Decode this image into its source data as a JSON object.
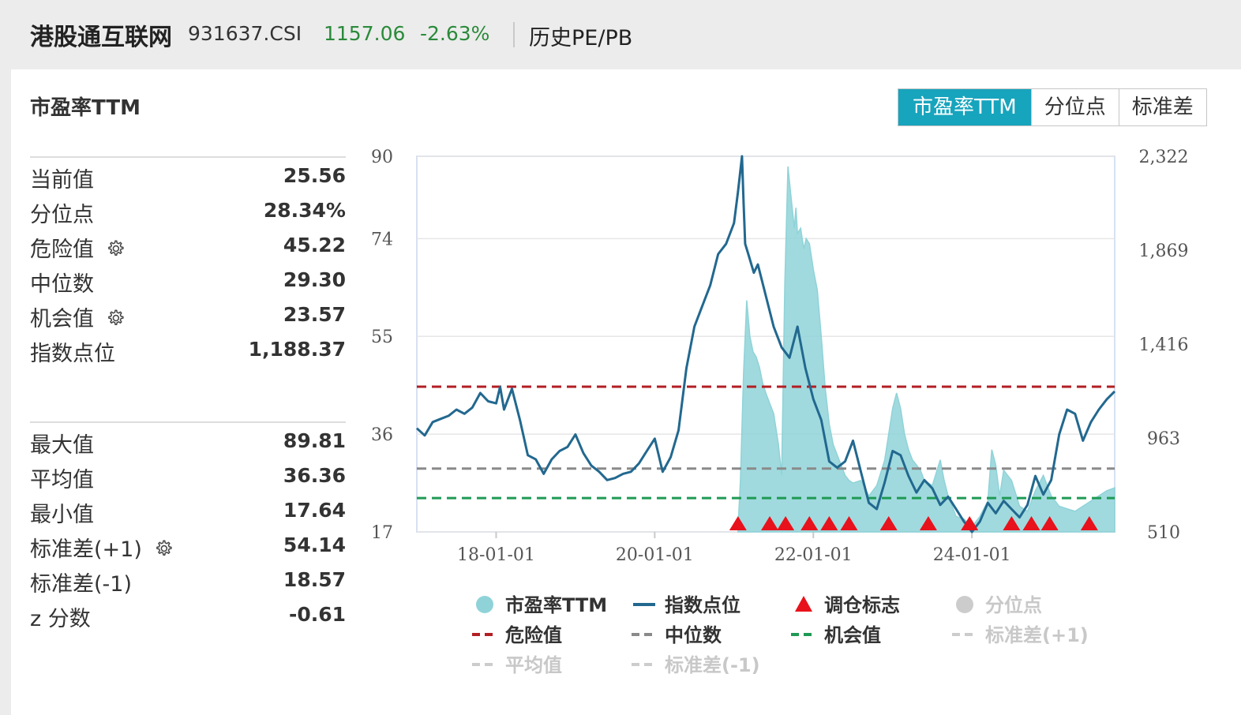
{
  "header": {
    "index_name": "港股通互联网",
    "code": "931637.CSI",
    "price": "1157.06",
    "change_pct": "-2.63%",
    "history_link": "历史PE/PB"
  },
  "panel": {
    "title": "市盈率TTM",
    "tabs": [
      {
        "label": "市盈率TTM",
        "active": true
      },
      {
        "label": "分位点",
        "active": false
      },
      {
        "label": "标准差",
        "active": false
      }
    ]
  },
  "stats_top": [
    {
      "label": "当前值",
      "value": "25.56",
      "gear": false
    },
    {
      "label": "分位点",
      "value": "28.34%",
      "gear": false
    },
    {
      "label": "危险值",
      "value": "45.22",
      "gear": true
    },
    {
      "label": "中位数",
      "value": "29.30",
      "gear": false
    },
    {
      "label": "机会值",
      "value": "23.57",
      "gear": true
    },
    {
      "label": "指数点位",
      "value": "1,188.37",
      "gear": false
    }
  ],
  "stats_bottom": [
    {
      "label": "最大值",
      "value": "89.81",
      "gear": false
    },
    {
      "label": "平均值",
      "value": "36.36",
      "gear": false
    },
    {
      "label": "最小值",
      "value": "17.64",
      "gear": false
    },
    {
      "label": "标准差(+1)",
      "value": "54.14",
      "gear": true
    },
    {
      "label": "标准差(-1)",
      "value": "18.57",
      "gear": false
    },
    {
      "label": "z 分数",
      "value": "-0.61",
      "gear": false
    }
  ],
  "colors": {
    "pe_fill": "#8fd3d8",
    "index_line": "#22688f",
    "danger": "#b21f24",
    "median": "#8a8a8a",
    "opportunity": "#1f9a55",
    "marker": "#e8121c",
    "accent": "#17a4bd",
    "inactive": "#cccccc"
  },
  "chart_data": {
    "type": "area",
    "title": "",
    "left_axis": {
      "ticks": [
        "90",
        "74",
        "55",
        "36",
        "17"
      ],
      "tick_values": [
        90,
        74,
        55,
        36,
        17
      ],
      "ylim": [
        17,
        90
      ]
    },
    "right_axis": {
      "ticks": [
        "2,322",
        "1,869",
        "1,416",
        "963",
        "510"
      ],
      "tick_values": [
        2322,
        1869,
        1416,
        963,
        510
      ],
      "ylim": [
        510,
        2322
      ]
    },
    "x_axis": {
      "ticks": [
        "18-01-01",
        "20-01-01",
        "22-01-01",
        "24-01-01"
      ],
      "tick_times": [
        2018.0,
        2020.0,
        2022.0,
        2024.0
      ],
      "xlim": [
        2017.0,
        2025.8
      ]
    },
    "reference_lines": [
      {
        "name": "危险值",
        "value": 45.22
      },
      {
        "name": "中位数",
        "value": 29.3
      },
      {
        "name": "机会值",
        "value": 23.57
      }
    ],
    "series": [
      {
        "name": "市盈率TTM",
        "axis": "left",
        "x": [
          2021.05,
          2021.08,
          2021.12,
          2021.16,
          2021.2,
          2021.24,
          2021.28,
          2021.32,
          2021.36,
          2021.4,
          2021.45,
          2021.5,
          2021.56,
          2021.6,
          2021.64,
          2021.68,
          2021.72,
          2021.76,
          2021.78,
          2021.8,
          2021.84,
          2021.88,
          2021.91,
          2021.95,
          2022.0,
          2022.05,
          2022.1,
          2022.15,
          2022.2,
          2022.25,
          2022.3,
          2022.35,
          2022.4,
          2022.45,
          2022.5,
          2022.6,
          2022.7,
          2022.8,
          2022.9,
          2023.0,
          2023.05,
          2023.1,
          2023.15,
          2023.2,
          2023.25,
          2023.3,
          2023.35,
          2023.4,
          2023.5,
          2023.6,
          2023.65,
          2023.7,
          2023.8,
          2023.9,
          2024.0,
          2024.1,
          2024.2,
          2024.25,
          2024.3,
          2024.35,
          2024.4,
          2024.5,
          2024.6,
          2024.7,
          2024.8,
          2024.9,
          2025.0,
          2025.1,
          2025.2,
          2025.3,
          2025.4,
          2025.5,
          2025.6,
          2025.7,
          2025.8
        ],
        "values": [
          17.6,
          27.0,
          48.0,
          62.0,
          55.0,
          52.0,
          51.0,
          49.0,
          46.0,
          44.0,
          42.0,
          40.0,
          34.0,
          28.0,
          65.0,
          88.0,
          82.0,
          76.0,
          80.0,
          75.0,
          76.0,
          72.0,
          74.0,
          73.0,
          68.0,
          64.0,
          55.0,
          45.0,
          38.0,
          34.0,
          32.0,
          30.0,
          28.0,
          27.0,
          26.5,
          27.0,
          24.0,
          26.0,
          31.0,
          41.0,
          44.0,
          41.0,
          36.0,
          33.0,
          31.0,
          30.0,
          29.0,
          27.0,
          26.0,
          31.0,
          27.0,
          24.0,
          20.0,
          19.5,
          18.0,
          20.0,
          23.0,
          33.0,
          30.0,
          24.0,
          29.0,
          27.0,
          22.0,
          21.0,
          25.0,
          28.0,
          24.0,
          22.0,
          21.5,
          21.0,
          22.0,
          23.0,
          24.0,
          25.0,
          25.56
        ]
      },
      {
        "name": "指数点位",
        "axis": "right",
        "x": [
          2017.0,
          2017.1,
          2017.2,
          2017.3,
          2017.4,
          2017.5,
          2017.6,
          2017.7,
          2017.8,
          2017.9,
          2018.0,
          2018.05,
          2018.1,
          2018.2,
          2018.3,
          2018.4,
          2018.5,
          2018.6,
          2018.7,
          2018.8,
          2018.9,
          2019.0,
          2019.1,
          2019.2,
          2019.3,
          2019.4,
          2019.5,
          2019.6,
          2019.7,
          2019.8,
          2019.9,
          2020.0,
          2020.1,
          2020.2,
          2020.3,
          2020.4,
          2020.5,
          2020.6,
          2020.7,
          2020.8,
          2020.9,
          2021.0,
          2021.05,
          2021.1,
          2021.12,
          2021.14,
          2021.18,
          2021.25,
          2021.3,
          2021.4,
          2021.5,
          2021.6,
          2021.7,
          2021.8,
          2021.9,
          2022.0,
          2022.1,
          2022.2,
          2022.3,
          2022.4,
          2022.5,
          2022.6,
          2022.7,
          2022.8,
          2022.9,
          2023.0,
          2023.1,
          2023.2,
          2023.3,
          2023.4,
          2023.5,
          2023.6,
          2023.7,
          2023.8,
          2023.9,
          2024.0,
          2024.1,
          2024.2,
          2024.3,
          2024.4,
          2024.5,
          2024.6,
          2024.7,
          2024.8,
          2024.9,
          2025.0,
          2025.1,
          2025.2,
          2025.3,
          2025.4,
          2025.5,
          2025.6,
          2025.7,
          2025.8
        ],
        "values": [
          1010,
          975,
          1040,
          1055,
          1070,
          1100,
          1080,
          1110,
          1180,
          1140,
          1130,
          1210,
          1100,
          1200,
          1050,
          880,
          860,
          790,
          860,
          900,
          920,
          980,
          890,
          830,
          800,
          760,
          770,
          790,
          800,
          840,
          900,
          960,
          800,
          870,
          1000,
          1300,
          1500,
          1600,
          1700,
          1850,
          1900,
          2000,
          2150,
          2322,
          2100,
          1900,
          1850,
          1760,
          1800,
          1650,
          1500,
          1400,
          1350,
          1500,
          1300,
          1150,
          1050,
          850,
          820,
          850,
          950,
          800,
          650,
          620,
          750,
          900,
          880,
          780,
          700,
          760,
          720,
          640,
          680,
          620,
          560,
          510,
          560,
          650,
          600,
          660,
          620,
          580,
          640,
          780,
          690,
          760,
          980,
          1100,
          1080,
          950,
          1040,
          1100,
          1150,
          1188
        ]
      }
    ],
    "rebalance_markers_x": [
      2021.05,
      2021.45,
      2021.65,
      2021.95,
      2022.2,
      2022.45,
      2022.95,
      2023.45,
      2023.97,
      2024.5,
      2024.75,
      2024.98,
      2025.48
    ],
    "legend": [
      {
        "label": "市盈率TTM",
        "kind": "circle",
        "color_key": "pe_fill",
        "active": true
      },
      {
        "label": "指数点位",
        "kind": "line",
        "color_key": "index_line",
        "active": true
      },
      {
        "label": "调仓标志",
        "kind": "triangle",
        "color_key": "marker",
        "active": true
      },
      {
        "label": "分位点",
        "kind": "circle",
        "color_key": "inactive",
        "active": false
      },
      {
        "label": "危险值",
        "kind": "dash",
        "color_key": "danger",
        "active": true
      },
      {
        "label": "中位数",
        "kind": "dash",
        "color_key": "median",
        "active": true
      },
      {
        "label": "机会值",
        "kind": "dash",
        "color_key": "opportunity",
        "active": true
      },
      {
        "label": "标准差(+1)",
        "kind": "dash",
        "color_key": "inactive",
        "active": false
      },
      {
        "label": "平均值",
        "kind": "dash",
        "color_key": "inactive",
        "active": false
      },
      {
        "label": "标准差(-1)",
        "kind": "dash",
        "color_key": "inactive",
        "active": false
      }
    ],
    "legend_position": "bottom",
    "grid": true
  }
}
